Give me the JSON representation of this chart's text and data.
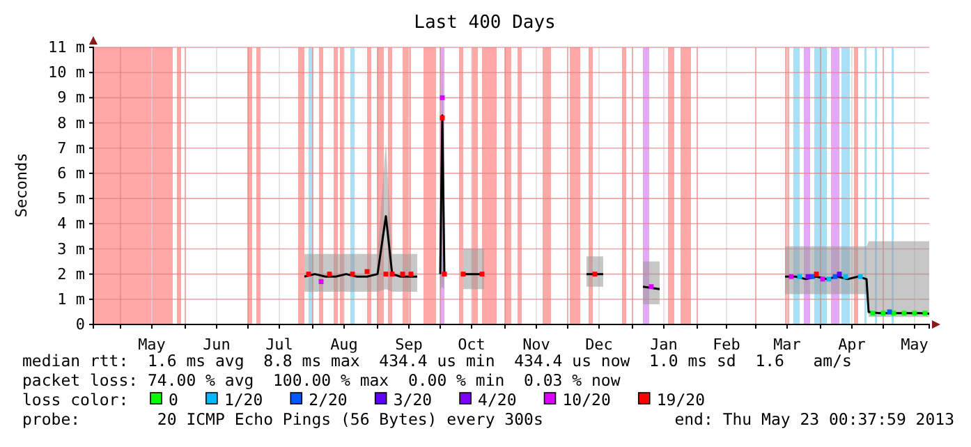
{
  "chart_data": {
    "type": "line",
    "title": "Last 400 Days",
    "ylabel": "Seconds",
    "xlim": [
      "2012-04-18",
      "2013-05-23"
    ],
    "xticks": [
      {
        "value": "2012-05-01",
        "label": null
      },
      {
        "value": "2012-05-16",
        "label": "May"
      },
      {
        "value": "2012-06-01",
        "label": null
      },
      {
        "value": "2012-06-16",
        "label": "Jun"
      },
      {
        "value": "2012-07-01",
        "label": null
      },
      {
        "value": "2012-07-16",
        "label": "Jul"
      },
      {
        "value": "2012-08-01",
        "label": null
      },
      {
        "value": "2012-08-16",
        "label": "Aug"
      },
      {
        "value": "2012-09-01",
        "label": null
      },
      {
        "value": "2012-09-16",
        "label": "Sep"
      },
      {
        "value": "2012-10-01",
        "label": null
      },
      {
        "value": "2012-10-16",
        "label": "Oct"
      },
      {
        "value": "2012-11-01",
        "label": null
      },
      {
        "value": "2012-11-16",
        "label": "Nov"
      },
      {
        "value": "2012-12-01",
        "label": null
      },
      {
        "value": "2012-12-16",
        "label": "Dec"
      },
      {
        "value": "2013-01-01",
        "label": null
      },
      {
        "value": "2013-01-16",
        "label": "Jan"
      },
      {
        "value": "2013-02-01",
        "label": null
      },
      {
        "value": "2013-02-15",
        "label": "Feb"
      },
      {
        "value": "2013-03-01",
        "label": null
      },
      {
        "value": "2013-03-16",
        "label": "Mar"
      },
      {
        "value": "2013-04-01",
        "label": null
      },
      {
        "value": "2013-04-16",
        "label": "Apr"
      },
      {
        "value": "2013-05-01",
        "label": null
      },
      {
        "value": "2013-05-16",
        "label": "May"
      }
    ],
    "ylim": [
      0,
      11
    ],
    "yticks": [
      0,
      {
        "value": 1,
        "label": "1 m"
      },
      {
        "value": 2,
        "label": "2 m"
      },
      {
        "value": 3,
        "label": "3 m"
      },
      {
        "value": 4,
        "label": "4 m"
      },
      {
        "value": 5,
        "label": "5 m"
      },
      {
        "value": 6,
        "label": "6 m"
      },
      {
        "value": 7,
        "label": "7 m"
      },
      {
        "value": 8,
        "label": "8 m"
      },
      {
        "value": 9,
        "label": "9 m"
      },
      {
        "value": 10,
        "label": "10 m"
      },
      {
        "value": 11,
        "label": "11 m"
      }
    ],
    "grid": true,
    "legend": "bottom",
    "legend_title": "loss color:",
    "marker": "square",
    "series": [
      {
        "color": "#000000",
        "marker": "none",
        "x": [
          "2012-07-28",
          "2012-08-02",
          "2012-08-07",
          "2012-08-12",
          "2012-08-17",
          "2012-08-22",
          "2012-08-27",
          "2012-09-01",
          "2012-09-05",
          "2012-09-08",
          "2012-09-12",
          "2012-09-16",
          "2012-09-20",
          "2012-09-25",
          "2012-10-01",
          "2012-10-02",
          "2012-10-03",
          "2012-10-07",
          "2012-10-12",
          "2012-10-15",
          "2012-10-22",
          "2012-11-15",
          "2012-12-10",
          "2012-12-18",
          "2012-12-28",
          "2013-01-06",
          "2013-01-14",
          "2013-02-15",
          "2013-03-15",
          "2013-03-20",
          "2013-03-25",
          "2013-03-30",
          "2013-04-04",
          "2013-04-09",
          "2013-04-14",
          "2013-04-19",
          "2013-04-23",
          "2013-04-24",
          "2013-04-29",
          "2013-05-04",
          "2013-05-09",
          "2013-05-14",
          "2013-05-19",
          "2013-05-23"
        ],
        "values": [
          1.9,
          2.0,
          1.9,
          1.9,
          2.0,
          1.9,
          1.9,
          2.0,
          4.3,
          2.0,
          1.9,
          1.9,
          1.9,
          null,
          2.0,
          8.3,
          2.0,
          null,
          2.0,
          2.0,
          2.0,
          null,
          2.0,
          2.0,
          null,
          1.5,
          1.4,
          null,
          1.9,
          1.9,
          1.8,
          1.9,
          1.8,
          1.9,
          1.8,
          1.9,
          1.8,
          0.5,
          0.45,
          0.45,
          0.45,
          0.45,
          0.45,
          0.43
        ],
        "lower": [
          1.3,
          1.3,
          1.3,
          1.3,
          1.3,
          1.3,
          1.3,
          1.3,
          1.4,
          1.3,
          1.3,
          1.3,
          1.3,
          null,
          1.4,
          1.5,
          1.4,
          null,
          1.4,
          1.4,
          1.4,
          null,
          1.5,
          1.5,
          null,
          0.8,
          0.8,
          null,
          1.2,
          1.2,
          1.2,
          1.2,
          1.2,
          1.2,
          1.2,
          1.2,
          1.2,
          0.3,
          0.3,
          0.3,
          0.3,
          0.3,
          0.3,
          0.3
        ],
        "upper": [
          2.8,
          2.8,
          2.8,
          2.8,
          2.8,
          2.8,
          2.8,
          2.8,
          7.2,
          2.8,
          2.8,
          2.8,
          2.8,
          null,
          3.0,
          11,
          3.0,
          null,
          3.0,
          3.0,
          3.0,
          null,
          2.7,
          2.7,
          null,
          2.5,
          2.5,
          null,
          3.1,
          3.1,
          3.1,
          3.1,
          3.1,
          3.1,
          3.1,
          3.1,
          3.1,
          3.3,
          3.3,
          3.3,
          3.3,
          3.3,
          3.3,
          3.3
        ]
      },
      {
        "type": "scatter",
        "name": "0",
        "color": "#00ff00",
        "x": [
          "2013-04-26",
          "2013-05-01",
          "2013-05-06",
          "2013-05-11",
          "2013-05-16",
          "2013-05-21"
        ],
        "values": [
          0.45,
          0.45,
          0.45,
          0.45,
          0.45,
          0.45
        ]
      },
      {
        "type": "scatter",
        "name": "1/20",
        "color": "#00b8ff",
        "x": [
          "2013-03-22",
          "2013-04-05",
          "2013-04-13",
          "2013-04-20"
        ],
        "values": [
          1.9,
          1.8,
          1.9,
          1.9
        ]
      },
      {
        "type": "scatter",
        "name": "2/20",
        "color": "#0059ff",
        "x": [
          "2013-03-28",
          "2013-04-08",
          "2013-05-04"
        ],
        "values": [
          1.9,
          1.9,
          0.5
        ]
      },
      {
        "type": "scatter",
        "name": "3/20",
        "color": "#5e00ff",
        "x": [
          "2013-04-10"
        ],
        "values": [
          2.0
        ]
      },
      {
        "type": "scatter",
        "name": "4/20",
        "color": "#7e00ff",
        "x": [
          "2013-03-26"
        ],
        "values": [
          1.9
        ]
      },
      {
        "type": "scatter",
        "name": "10/20",
        "color": "#dd00ff",
        "x": [
          "2012-08-05",
          "2012-10-02",
          "2013-01-10",
          "2013-03-18",
          "2013-04-02"
        ],
        "values": [
          1.7,
          9.0,
          1.5,
          1.9,
          1.8
        ]
      },
      {
        "type": "scatter",
        "name": "19/20",
        "color": "#ff0000",
        "x": [
          "2012-07-30",
          "2012-08-09",
          "2012-08-20",
          "2012-08-27",
          "2012-09-05",
          "2012-09-08",
          "2012-09-13",
          "2012-09-17",
          "2012-10-02",
          "2012-10-03",
          "2012-10-12",
          "2012-10-21",
          "2012-12-14",
          "2013-03-30"
        ],
        "values": [
          2.0,
          2.0,
          2.0,
          2.1,
          2.0,
          2.0,
          2.0,
          2.0,
          8.2,
          2.0,
          2.0,
          2.0,
          2.0,
          2.0
        ]
      }
    ],
    "bands": [
      {
        "axis": "x",
        "from": "2012-04-18",
        "to": "2012-05-26",
        "color": "#ffa8a8"
      },
      {
        "axis": "x",
        "from": "2012-05-28",
        "to": "2012-05-30",
        "color": "#ffa8a8"
      },
      {
        "axis": "x",
        "from": "2012-07-01",
        "to": "2012-07-03",
        "color": "#ffa8a8"
      },
      {
        "axis": "x",
        "from": "2012-07-05",
        "to": "2012-07-07",
        "color": "#ffa8a8"
      },
      {
        "axis": "x",
        "from": "2012-07-25",
        "to": "2012-07-28",
        "color": "#ffa8a8"
      },
      {
        "axis": "x",
        "from": "2012-07-30",
        "to": "2012-08-01",
        "color": "#a8e0f8"
      },
      {
        "axis": "x",
        "from": "2012-08-04",
        "to": "2012-08-06",
        "color": "#ffa8a8"
      },
      {
        "axis": "x",
        "from": "2012-08-11",
        "to": "2012-08-13",
        "color": "#ffa8a8"
      },
      {
        "axis": "x",
        "from": "2012-08-14",
        "to": "2012-08-16",
        "color": "#ffa8a8"
      },
      {
        "axis": "x",
        "from": "2012-08-19",
        "to": "2012-08-21",
        "color": "#a8e0f8"
      },
      {
        "axis": "x",
        "from": "2012-08-27",
        "to": "2012-08-29",
        "color": "#ffa8a8"
      },
      {
        "axis": "x",
        "from": "2012-09-01",
        "to": "2012-09-04",
        "color": "#ffa8a8"
      },
      {
        "axis": "x",
        "from": "2012-09-06",
        "to": "2012-09-08",
        "color": "#ffa8a8"
      },
      {
        "axis": "x",
        "from": "2012-09-13",
        "to": "2012-09-17",
        "color": "#ffa8a8"
      },
      {
        "axis": "x",
        "from": "2012-09-23",
        "to": "2012-09-29",
        "color": "#ffa8a8"
      },
      {
        "axis": "x",
        "from": "2012-10-01",
        "to": "2012-10-03",
        "color": "#e4a8f8"
      },
      {
        "axis": "x",
        "from": "2012-10-10",
        "to": "2012-10-12",
        "color": "#ffa8a8"
      },
      {
        "axis": "x",
        "from": "2012-10-16",
        "to": "2012-10-19",
        "color": "#ffa8a8"
      },
      {
        "axis": "x",
        "from": "2012-10-21",
        "to": "2012-10-28",
        "color": "#ffa8a8"
      },
      {
        "axis": "x",
        "from": "2012-11-01",
        "to": "2012-11-04",
        "color": "#ffa8a8"
      },
      {
        "axis": "x",
        "from": "2012-11-07",
        "to": "2012-11-09",
        "color": "#ffa8a8"
      },
      {
        "axis": "x",
        "from": "2012-11-19",
        "to": "2012-11-23",
        "color": "#ffa8a8"
      },
      {
        "axis": "x",
        "from": "2012-12-02",
        "to": "2012-12-07",
        "color": "#ffa8a8"
      },
      {
        "axis": "x",
        "from": "2012-12-11",
        "to": "2012-12-13",
        "color": "#ffa8a8"
      },
      {
        "axis": "x",
        "from": "2012-12-27",
        "to": "2012-12-29",
        "color": "#ffa8a8"
      },
      {
        "axis": "x",
        "from": "2013-01-06",
        "to": "2013-01-09",
        "color": "#e4a8f8"
      },
      {
        "axis": "x",
        "from": "2013-01-18",
        "to": "2013-01-21",
        "color": "#ffa8a8"
      },
      {
        "axis": "x",
        "from": "2013-01-24",
        "to": "2013-01-29",
        "color": "#ffa8a8"
      },
      {
        "axis": "x",
        "from": "2013-03-15",
        "to": "2013-03-17",
        "color": "#ffa8a8"
      },
      {
        "axis": "x",
        "from": "2013-03-19",
        "to": "2013-03-22",
        "color": "#a8e0f8"
      },
      {
        "axis": "x",
        "from": "2013-03-24",
        "to": "2013-03-27",
        "color": "#e4a8f8"
      },
      {
        "axis": "x",
        "from": "2013-03-29",
        "to": "2013-04-04",
        "color": "#a8e0f8"
      },
      {
        "axis": "x",
        "from": "2013-04-06",
        "to": "2013-04-10",
        "color": "#e4a8f8"
      },
      {
        "axis": "x",
        "from": "2013-04-11",
        "to": "2013-04-15",
        "color": "#a8e0f8"
      },
      {
        "axis": "x",
        "from": "2013-04-17",
        "to": "2013-04-19",
        "color": "#ffa8a8"
      },
      {
        "axis": "x",
        "from": "2013-04-22",
        "to": "2013-04-23",
        "color": "#a8e0f8"
      },
      {
        "axis": "x",
        "from": "2013-04-27",
        "to": "2013-04-28",
        "color": "#a8e0f8"
      },
      {
        "axis": "x",
        "from": "2013-05-05",
        "to": "2013-05-06",
        "color": "#a8e0f8"
      }
    ],
    "annotations": [
      "median rtt:  1.6 ms avg  8.8 ms max  434.4 us min  434.4 us now  1.0 ms sd  1.6   am/s",
      "packet loss: 74.00 % avg  100.00 % max  0.00 % min  0.03 % now",
      "probe:        20 ICMP Echo Pings (56 Bytes) every 300s",
      "end: Thu May 23 00:37:59 2013"
    ]
  }
}
